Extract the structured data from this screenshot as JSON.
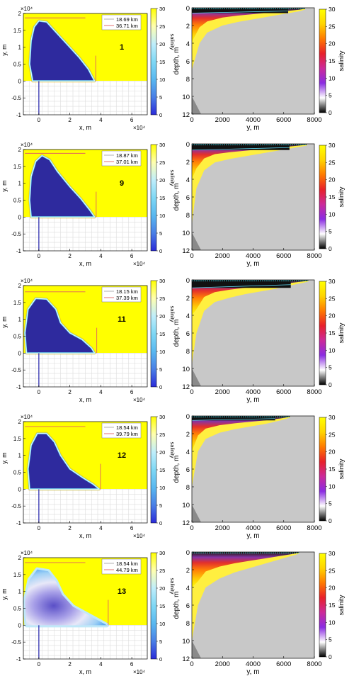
{
  "colors": {
    "plume": "#2e2a9e",
    "plume_edge": "#66d9f0",
    "sea": "#ffff00",
    "land_grid": "#dcdcdc",
    "land": "#c8c8c8",
    "front_line": "#e06060",
    "transect": "#2222aa"
  },
  "map_colorbar": {
    "label": "salinity",
    "ticks": [
      "0",
      "5",
      "10",
      "15",
      "20",
      "25",
      "30"
    ],
    "stops": [
      "#2b2bd9",
      "#4a7fe6",
      "#59b8f0",
      "#7fd8f5",
      "#bfeefb",
      "#ffffb0",
      "#ffff00"
    ]
  },
  "section_colorbar": {
    "label": "salinity",
    "ticks": [
      "0",
      "5",
      "10",
      "15",
      "20",
      "25",
      "30"
    ],
    "stops": [
      "#000000",
      "#ffffff",
      "#8a2be2",
      "#cc2a9a",
      "#e8202a",
      "#ff7a00",
      "#ffd400",
      "#ffff00"
    ]
  },
  "chart_data": [
    {
      "type": "heatmap",
      "panel": "1",
      "xlabel": "x, m",
      "ylabel": "y, m",
      "x_exponent": "×10⁴",
      "y_exponent": "×10⁴",
      "xticks": [
        "0",
        "2",
        "4",
        "6"
      ],
      "yticks": [
        "-1",
        "-0.5",
        "0",
        "0.5",
        "1",
        "1.5",
        "2"
      ],
      "xlim": [
        -1,
        7
      ],
      "ylim": [
        -1,
        2
      ],
      "legend": [
        "18.69  km",
        "36.71  km"
      ],
      "front_x": 3.671,
      "front_y": 1.869,
      "plume": [
        [
          -0.4,
          0
        ],
        [
          -0.6,
          0.5
        ],
        [
          -0.5,
          1.2
        ],
        [
          -0.3,
          1.6
        ],
        [
          0,
          1.78
        ],
        [
          0.5,
          1.75
        ],
        [
          1,
          1.5
        ],
        [
          1.8,
          1.1
        ],
        [
          2.6,
          0.7
        ],
        [
          3.2,
          0.35
        ],
        [
          3.6,
          0
        ]
      ],
      "plume_style": "sharp"
    },
    {
      "type": "heatmap",
      "xlabel": "y, m",
      "ylabel": "depth, m",
      "xticks": [
        "0",
        "2000",
        "4000",
        "6000",
        "8000"
      ],
      "yticks": [
        "0",
        "2",
        "4",
        "6",
        "8",
        "10",
        "12"
      ],
      "xlim": [
        0,
        8000
      ],
      "ylim": [
        0,
        12
      ],
      "plume_end": 7400,
      "surface_layer": 0.6,
      "front": [
        [
          0,
          7
        ],
        [
          500,
          4
        ],
        [
          1000,
          2.8
        ],
        [
          2000,
          2.0
        ],
        [
          3000,
          1.6
        ],
        [
          4000,
          1.3
        ],
        [
          5000,
          1.0
        ],
        [
          6000,
          0.7
        ],
        [
          7000,
          0.4
        ],
        [
          7400,
          0.2
        ]
      ]
    },
    {
      "type": "heatmap",
      "panel": "9",
      "xlabel": "x, m",
      "ylabel": "y, m",
      "x_exponent": "×10⁴",
      "y_exponent": "×10⁴",
      "xticks": [
        "0",
        "2",
        "4",
        "6"
      ],
      "yticks": [
        "-1",
        "-0.5",
        "0",
        "0.5",
        "1",
        "1.5",
        "2"
      ],
      "xlim": [
        -1,
        7
      ],
      "ylim": [
        -1,
        2
      ],
      "legend": [
        "18.87  km",
        "37.01  km"
      ],
      "front_x": 3.701,
      "front_y": 1.887,
      "plume": [
        [
          -0.5,
          0
        ],
        [
          -0.6,
          0.5
        ],
        [
          -0.5,
          1.2
        ],
        [
          -0.2,
          1.65
        ],
        [
          0.2,
          1.82
        ],
        [
          0.7,
          1.7
        ],
        [
          1.2,
          1.35
        ],
        [
          2,
          0.9
        ],
        [
          2.7,
          0.55
        ],
        [
          3.3,
          0.2
        ],
        [
          3.6,
          0
        ]
      ],
      "plume_style": "sharp"
    },
    {
      "type": "heatmap",
      "xlabel": "y, m",
      "ylabel": "depth, m",
      "xticks": [
        "0",
        "2000",
        "4000",
        "6000",
        "8000"
      ],
      "yticks": [
        "0",
        "2",
        "4",
        "6",
        "8",
        "10",
        "12"
      ],
      "xlim": [
        0,
        8000
      ],
      "ylim": [
        0,
        12
      ],
      "plume_end": 7500,
      "surface_layer": 0.7,
      "front": [
        [
          0,
          9
        ],
        [
          300,
          5
        ],
        [
          800,
          3
        ],
        [
          1500,
          2.1
        ],
        [
          2500,
          1.7
        ],
        [
          3500,
          1.4
        ],
        [
          4500,
          1.1
        ],
        [
          5500,
          0.8
        ],
        [
          6500,
          0.5
        ],
        [
          7500,
          0.2
        ]
      ]
    },
    {
      "type": "heatmap",
      "panel": "11",
      "xlabel": "x, m",
      "ylabel": "y, m",
      "x_exponent": "×10⁴",
      "y_exponent": "×10⁴",
      "xticks": [
        "0",
        "2",
        "4",
        "6"
      ],
      "yticks": [
        "-1",
        "-0.5",
        "0",
        "0.5",
        "1",
        "1.5",
        "2"
      ],
      "xlim": [
        -1,
        7
      ],
      "ylim": [
        -1,
        2
      ],
      "legend": [
        "18.15  km",
        "37.39  km"
      ],
      "front_x": 3.739,
      "front_y": 1.815,
      "plume": [
        [
          -0.8,
          0
        ],
        [
          -0.9,
          0.6
        ],
        [
          -0.7,
          1.3
        ],
        [
          -0.2,
          1.62
        ],
        [
          0.5,
          1.6
        ],
        [
          1.1,
          1.3
        ],
        [
          1.4,
          0.9
        ],
        [
          2,
          0.6
        ],
        [
          2.8,
          0.4
        ],
        [
          3.4,
          0.15
        ],
        [
          3.6,
          0
        ]
      ],
      "plume_style": "sharp"
    },
    {
      "type": "heatmap",
      "xlabel": "y, m",
      "ylabel": "depth, m",
      "xticks": [
        "0",
        "2000",
        "4000",
        "6000",
        "8000"
      ],
      "yticks": [
        "0",
        "2",
        "4",
        "6",
        "8",
        "10",
        "12"
      ],
      "xlim": [
        0,
        8000
      ],
      "ylim": [
        0,
        12
      ],
      "plume_end": 7600,
      "surface_layer": 0.9,
      "front": [
        [
          0,
          9.5
        ],
        [
          300,
          6
        ],
        [
          800,
          3.5
        ],
        [
          1500,
          2.5
        ],
        [
          2500,
          2.0
        ],
        [
          3500,
          1.6
        ],
        [
          4500,
          1.3
        ],
        [
          5500,
          1.0
        ],
        [
          6500,
          0.6
        ],
        [
          7600,
          0.2
        ]
      ]
    },
    {
      "type": "heatmap",
      "panel": "12",
      "xlabel": "x, m",
      "ylabel": "y, m",
      "x_exponent": "×10⁴",
      "y_exponent": "×10⁴",
      "xticks": [
        "0",
        "2",
        "4",
        "6"
      ],
      "yticks": [
        "-1",
        "-0.5",
        "0",
        "0.5",
        "1",
        "1.5",
        "2"
      ],
      "xlim": [
        -1,
        7
      ],
      "ylim": [
        -1,
        2
      ],
      "legend": [
        "18.54  km",
        "39.79  km"
      ],
      "front_x": 3.979,
      "front_y": 1.854,
      "plume": [
        [
          -0.6,
          0
        ],
        [
          -0.7,
          0.6
        ],
        [
          -0.5,
          1.3
        ],
        [
          -0.1,
          1.65
        ],
        [
          0.5,
          1.65
        ],
        [
          1,
          1.4
        ],
        [
          1.4,
          1
        ],
        [
          2,
          0.6
        ],
        [
          2.8,
          0.35
        ],
        [
          3.5,
          0.15
        ],
        [
          3.9,
          0
        ]
      ],
      "plume_style": "sharp"
    },
    {
      "type": "heatmap",
      "xlabel": "y, m",
      "ylabel": "depth, m",
      "xticks": [
        "0",
        "2000",
        "4000",
        "6000",
        "8000"
      ],
      "yticks": [
        "0",
        "2",
        "4",
        "6",
        "8",
        "10",
        "12"
      ],
      "xlim": [
        0,
        8000
      ],
      "ylim": [
        0,
        12
      ],
      "plume_end": 6400,
      "surface_layer": 0.5,
      "front": [
        [
          0,
          8
        ],
        [
          400,
          4
        ],
        [
          900,
          2.6
        ],
        [
          1800,
          1.9
        ],
        [
          2800,
          1.5
        ],
        [
          3800,
          1.2
        ],
        [
          4800,
          0.9
        ],
        [
          5800,
          0.5
        ],
        [
          6400,
          0.2
        ]
      ]
    },
    {
      "type": "heatmap",
      "panel": "13",
      "xlabel": "x, m",
      "ylabel": "y, m",
      "x_exponent": "×10⁴",
      "y_exponent": "×10⁴",
      "xticks": [
        "0",
        "2",
        "4",
        "6"
      ],
      "yticks": [
        "-1",
        "-0.5",
        "0",
        "0.5",
        "1",
        "1.5",
        "2"
      ],
      "xlim": [
        -1,
        7
      ],
      "ylim": [
        -1,
        2
      ],
      "legend": [
        "18.54  km",
        "44.79  km"
      ],
      "front_x": 4.479,
      "front_y": 1.854,
      "plume": [
        [
          -0.8,
          0
        ],
        [
          -0.9,
          0.7
        ],
        [
          -0.6,
          1.35
        ],
        [
          -0.1,
          1.65
        ],
        [
          0.6,
          1.6
        ],
        [
          1.1,
          1.3
        ],
        [
          1.5,
          0.9
        ],
        [
          2.2,
          0.55
        ],
        [
          3.2,
          0.3
        ],
        [
          4,
          0.1
        ],
        [
          4.4,
          0
        ]
      ],
      "plume_style": "diffuse"
    },
    {
      "type": "heatmap",
      "xlabel": "y, m",
      "ylabel": "depth, m",
      "xticks": [
        "0",
        "2000",
        "4000",
        "6000",
        "8000"
      ],
      "yticks": [
        "0",
        "2",
        "4",
        "6",
        "8",
        "10",
        "12"
      ],
      "xlim": [
        0,
        8000
      ],
      "ylim": [
        0,
        12
      ],
      "plume_end": 7000,
      "surface_layer": 0.0,
      "front": [
        [
          0,
          10
        ],
        [
          400,
          6
        ],
        [
          900,
          4
        ],
        [
          1800,
          3
        ],
        [
          2800,
          2.3
        ],
        [
          3800,
          1.8
        ],
        [
          4800,
          1.3
        ],
        [
          5800,
          0.8
        ],
        [
          7000,
          0.2
        ]
      ]
    }
  ]
}
